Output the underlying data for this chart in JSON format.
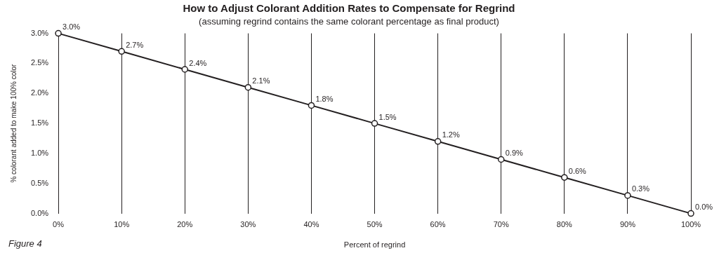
{
  "chart_data": {
    "type": "line",
    "title": "How to Adjust Colorant Addition Rates to Compensate for Regrind",
    "subtitle": "(assuming regrind contains the same colorant percentage as final product)",
    "xlabel": "Percent of regrind",
    "ylabel": "% colorant added to make 100% color",
    "x": [
      0,
      10,
      20,
      30,
      40,
      50,
      60,
      70,
      80,
      90,
      100
    ],
    "series": [
      {
        "color": "#231f20",
        "values": [
          3.0,
          2.7,
          2.4,
          2.1,
          1.8,
          1.5,
          1.2,
          0.9,
          0.6,
          0.3,
          0.0
        ],
        "value_labels": [
          "3.0%",
          "2.7%",
          "2.4%",
          "2.1%",
          "1.8%",
          "1.5%",
          "1.2%",
          "0.9%",
          "0.6%",
          "0.3%",
          "0.0%"
        ]
      }
    ],
    "xlim": [
      0,
      100
    ],
    "ylim": [
      0,
      3
    ],
    "xticks": [
      {
        "value": 0,
        "label": "0%"
      },
      {
        "value": 10,
        "label": "10%"
      },
      {
        "value": 20,
        "label": "20%"
      },
      {
        "value": 30,
        "label": "30%"
      },
      {
        "value": 40,
        "label": "40%"
      },
      {
        "value": 50,
        "label": "50%"
      },
      {
        "value": 60,
        "label": "60%"
      },
      {
        "value": 70,
        "label": "70%"
      },
      {
        "value": 80,
        "label": "80%"
      },
      {
        "value": 90,
        "label": "90%"
      },
      {
        "value": 100,
        "label": "100%"
      }
    ],
    "yticks": [
      {
        "value": 0,
        "label": "0.0%"
      },
      {
        "value": 0.5,
        "label": "0.5%"
      },
      {
        "value": 1,
        "label": "1.0%"
      },
      {
        "value": 1.5,
        "label": "1.5%"
      },
      {
        "value": 2,
        "label": "2.0%"
      },
      {
        "value": 2.5,
        "label": "2.5%"
      },
      {
        "value": 3,
        "label": "3.0%"
      }
    ],
    "grid": "x",
    "legend": false,
    "marker": "circle",
    "line_style": "solid",
    "annotations": [
      "Figure 4"
    ]
  }
}
